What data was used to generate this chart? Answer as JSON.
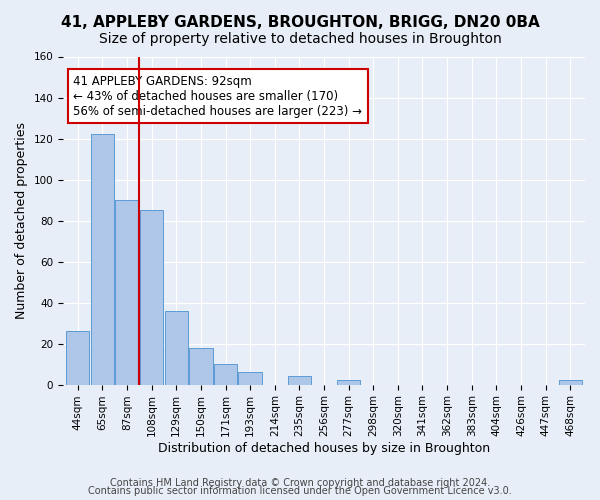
{
  "title": "41, APPLEBY GARDENS, BROUGHTON, BRIGG, DN20 0BA",
  "subtitle": "Size of property relative to detached houses in Broughton",
  "xlabel": "Distribution of detached houses by size in Broughton",
  "ylabel": "Number of detached properties",
  "bar_values": [
    26,
    122,
    90,
    85,
    36,
    18,
    10,
    6,
    0,
    4,
    0,
    2,
    0,
    0,
    0,
    0,
    0,
    0,
    0,
    0,
    2
  ],
  "bar_labels": [
    "44sqm",
    "65sqm",
    "87sqm",
    "108sqm",
    "129sqm",
    "150sqm",
    "171sqm",
    "193sqm",
    "214sqm",
    "235sqm",
    "256sqm",
    "277sqm",
    "298sqm",
    "320sqm",
    "341sqm",
    "362sqm",
    "383sqm",
    "404sqm",
    "426sqm",
    "447sqm",
    "468sqm"
  ],
  "ylim": [
    0,
    160
  ],
  "yticks": [
    0,
    20,
    40,
    60,
    80,
    100,
    120,
    140,
    160
  ],
  "bar_color": "#aec6e8",
  "bar_edge_color": "#5b9bd5",
  "vline_color": "#cc0000",
  "vline_pos": 2.5,
  "annotation_text": "41 APPLEBY GARDENS: 92sqm\n← 43% of detached houses are smaller (170)\n56% of semi-detached houses are larger (223) →",
  "annotation_box_color": "#ffffff",
  "annotation_box_edge": "#cc0000",
  "footer_line1": "Contains HM Land Registry data © Crown copyright and database right 2024.",
  "footer_line2": "Contains public sector information licensed under the Open Government Licence v3.0.",
  "background_color": "#e8eef7",
  "plot_bg_color": "#e8eef7",
  "grid_color": "#ffffff",
  "title_fontsize": 11,
  "subtitle_fontsize": 10,
  "axis_label_fontsize": 9,
  "tick_fontsize": 7.5,
  "annotation_fontsize": 8.5,
  "footer_fontsize": 7
}
